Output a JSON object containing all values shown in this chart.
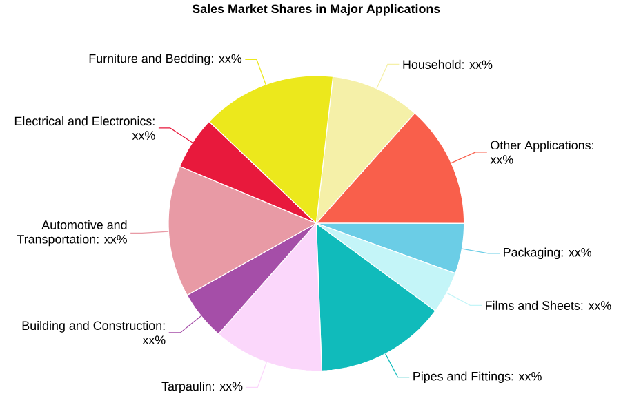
{
  "chart_data": {
    "type": "pie",
    "title": "Sales Market Shares in Major Applications",
    "categories": [
      "Household: xx%",
      "Other Applications: xx%",
      "Packaging: xx%",
      "Films and Sheets: xx%",
      "Pipes and Fittings: xx%",
      "Tarpaulin: xx%",
      "Building and Construction: xx%",
      "Automotive and Transportation: xx%",
      "Electrical and Electronics: xx%",
      "Furniture and Bedding: xx%"
    ],
    "values": [
      9.8,
      13.4,
      5.5,
      4.6,
      14.3,
      12.1,
      5.4,
      14.4,
      5.8,
      14.7
    ],
    "colors": [
      "#f5f0a8",
      "#f95f4b",
      "#6bcde6",
      "#c4f5f8",
      "#10bbbb",
      "#fbd7fb",
      "#a54ea8",
      "#e89aa5",
      "#e8193c",
      "#ece81c"
    ]
  }
}
